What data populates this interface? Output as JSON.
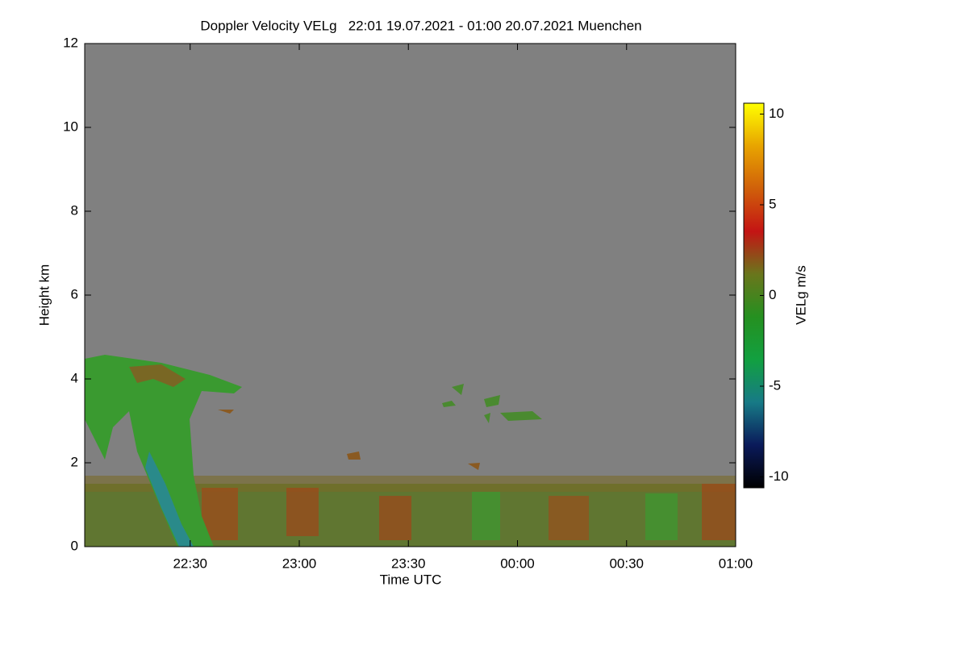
{
  "chart_data": {
    "type": "heatmap",
    "title": "Doppler Velocity VELg   22:01 19.07.2021 - 01:00 20.07.2021 Muenchen",
    "x_label": "Time UTC",
    "y_label": "Height km",
    "background_color": "#808080",
    "xlim": [
      22.0167,
      25.0
    ],
    "xticks": [
      {
        "value": 22.5,
        "label": "22:30"
      },
      {
        "value": 23.0,
        "label": "23:00"
      },
      {
        "value": 23.5,
        "label": "23:30"
      },
      {
        "value": 24.0,
        "label": "00:00"
      },
      {
        "value": 24.5,
        "label": "00:30"
      },
      {
        "value": 25.0,
        "label": "01:00"
      }
    ],
    "ylim": [
      0,
      12
    ],
    "yticks": [
      0,
      2,
      4,
      6,
      8,
      10,
      12
    ],
    "colorbar": {
      "label": "VELg m/s",
      "lim": [
        -10.6,
        10.6
      ],
      "ticks": [
        -10,
        -5,
        0,
        5,
        10
      ],
      "colors": [
        "#000000",
        "#0a1a5a",
        "#177a86",
        "#12a040",
        "#259020",
        "#6a761c",
        "#c41414",
        "#d0600a",
        "#e8a400",
        "#ffff00"
      ]
    }
  }
}
